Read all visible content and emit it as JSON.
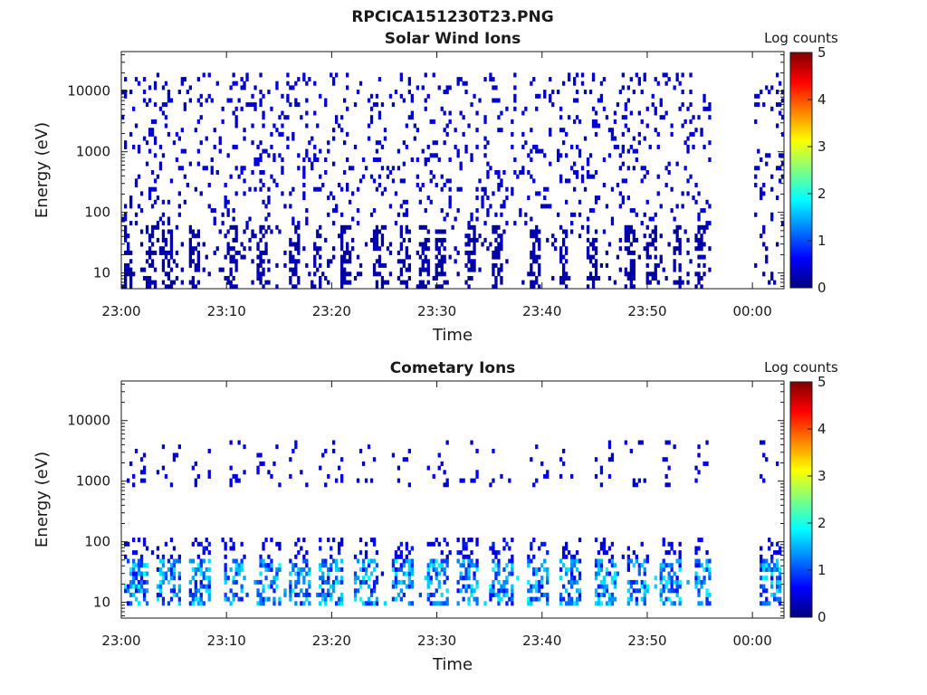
{
  "figure_title": "RPCICA151230T23.PNG",
  "colorbar": {
    "label": "Log counts",
    "ticks": [
      "0",
      "1",
      "2",
      "3",
      "4",
      "5"
    ],
    "range": [
      0,
      5
    ],
    "colormap": "jet"
  },
  "chart_data": [
    {
      "type": "heatmap",
      "title": "Solar Wind Ions",
      "xlabel": "Time",
      "ylabel": "Energy (eV)",
      "x_ticks": [
        "23:00",
        "23:10",
        "23:20",
        "23:30",
        "23:40",
        "23:50",
        "00:00"
      ],
      "x_tick_minutes": [
        0,
        10,
        20,
        30,
        40,
        50,
        60
      ],
      "xlim_minutes": [
        0,
        63
      ],
      "y_scale": "log",
      "ylim": [
        5.5,
        45000
      ],
      "y_ticks": [
        "10",
        "100",
        "1000",
        "10000"
      ],
      "y_tick_values": [
        10,
        100,
        1000,
        10000
      ],
      "data_gap_minutes": [
        55.8,
        60.1
      ],
      "background_log_counts": 0.2,
      "emission_bands": [
        {
          "e_min": 60,
          "e_max": 20000,
          "density": 0.12,
          "log_counts": [
            0.3,
            0.5
          ]
        },
        {
          "e_min": 5.5,
          "e_max": 60,
          "density": 0.07,
          "log_counts": [
            0.1,
            0.3
          ]
        }
      ],
      "columns_minutes": [
        0.5,
        2.6,
        4.3,
        6.7,
        10.4,
        13.3,
        16.3,
        18.5,
        21.2,
        24.2,
        26.9,
        28.6,
        30.3,
        33.0,
        35.7,
        39.1,
        41.9,
        44.6,
        48.1,
        50.2,
        52.7,
        54.9
      ]
    },
    {
      "type": "heatmap",
      "title": "Cometary Ions",
      "xlabel": "Time",
      "ylabel": "Energy (eV)",
      "x_ticks": [
        "23:00",
        "23:10",
        "23:20",
        "23:30",
        "23:40",
        "23:50",
        "00:00"
      ],
      "x_tick_minutes": [
        0,
        10,
        20,
        30,
        40,
        50,
        60
      ],
      "xlim_minutes": [
        0,
        63
      ],
      "y_scale": "log",
      "ylim": [
        5.5,
        45000
      ],
      "y_ticks": [
        "10",
        "100",
        "1000",
        "10000"
      ],
      "y_tick_values": [
        10,
        100,
        1000,
        10000
      ],
      "data_gap_minutes": [
        55.8,
        60.1
      ],
      "background_log_counts": 0.2,
      "emission_bands": [
        {
          "e_min": 8,
          "e_max": 50,
          "density": 0.5,
          "log_counts": [
            0.6,
            1.9
          ]
        },
        {
          "e_min": 50,
          "e_max": 110,
          "density": 0.25,
          "log_counts": [
            0.3,
            0.8
          ]
        },
        {
          "e_min": 700,
          "e_max": 4500,
          "density": 0.08,
          "log_counts": [
            0.3,
            0.6
          ]
        }
      ],
      "bursts_minutes": [
        0.5,
        3.5,
        6.5,
        9.8,
        13.1,
        16.0,
        19.0,
        22.3,
        25.8,
        29.1,
        32.0,
        35.2,
        38.7,
        41.8,
        45.0,
        48.2,
        51.3,
        54.7,
        60.8
      ]
    }
  ]
}
